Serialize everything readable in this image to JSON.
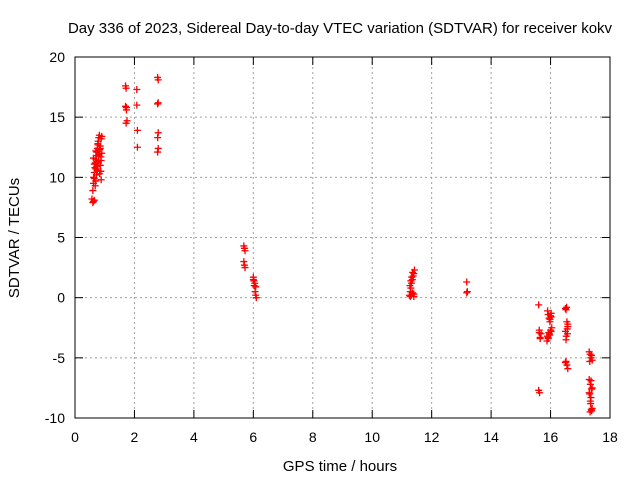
{
  "chart_data": {
    "type": "scatter",
    "title": "Day 336 of 2023, Sidereal Day-to-day VTEC variation (SDTVAR) for receiver kokv",
    "xlabel": "GPS time / hours",
    "ylabel": "SDTVAR / TECUs",
    "xlim": [
      0,
      18
    ],
    "ylim": [
      -10,
      20
    ],
    "xticks": [
      "0",
      "2",
      "4",
      "6",
      "8",
      "10",
      "12",
      "14",
      "16",
      "18"
    ],
    "yticks": [
      "-10",
      "-5",
      "0",
      "5",
      "10",
      "15",
      "20"
    ],
    "grid": true,
    "marker": "+",
    "color": "#ff0000",
    "series": [
      {
        "name": "SDTVAR",
        "x": [
          0.57,
          0.6,
          0.62,
          0.63,
          0.65,
          0.67,
          0.68,
          0.7,
          0.72,
          0.73,
          0.75,
          0.77,
          0.78,
          0.8,
          0.82,
          0.83,
          0.85,
          0.87,
          0.88,
          0.6,
          0.62,
          0.65,
          0.68,
          0.7,
          0.72,
          0.75,
          0.78,
          0.8,
          0.83,
          0.85,
          0.88,
          0.62,
          0.65,
          0.7,
          0.73,
          0.77,
          0.8,
          0.83,
          0.87,
          0.65,
          0.7,
          0.75,
          0.8,
          0.85,
          0.9,
          0.88,
          0.9,
          1.7,
          1.72,
          1.73,
          1.75,
          1.7,
          1.72,
          1.73,
          2.08,
          2.08,
          2.1,
          2.1,
          2.78,
          2.8,
          2.78,
          2.8,
          2.78,
          2.8,
          2.78,
          2.8,
          5.68,
          5.7,
          5.72,
          5.68,
          5.7,
          5.72,
          6.0,
          6.02,
          6.05,
          6.08,
          6.0,
          6.03,
          6.06,
          6.08,
          6.1,
          11.25,
          11.28,
          11.3,
          11.32,
          11.35,
          11.38,
          11.4,
          11.42,
          11.27,
          11.3,
          11.33,
          11.36,
          11.4,
          11.28,
          11.32,
          11.36,
          11.4,
          13.18,
          13.2,
          13.18,
          15.6,
          15.62,
          15.65,
          15.6,
          15.63,
          15.68,
          15.62,
          15.65,
          15.9,
          15.92,
          15.95,
          15.98,
          16.0,
          16.02,
          15.88,
          15.92,
          15.96,
          16.0,
          16.04,
          15.9,
          15.94,
          15.98,
          16.02,
          15.92,
          15.97,
          16.02,
          16.5,
          16.52,
          16.55,
          16.58,
          16.5,
          16.53,
          16.57,
          16.52,
          16.55,
          16.58,
          16.5,
          16.54,
          16.58,
          16.52,
          16.56,
          17.3,
          17.33,
          17.36,
          17.4,
          17.3,
          17.34,
          17.38,
          17.32,
          17.36,
          17.4,
          17.33,
          17.37,
          17.3,
          17.34,
          17.38,
          17.32,
          17.36,
          17.4,
          17.35,
          17.38
        ],
        "y": [
          8.2,
          8.9,
          9.5,
          10.0,
          10.4,
          10.8,
          11.2,
          11.5,
          11.8,
          12.1,
          12.4,
          12.7,
          13.0,
          13.3,
          13.5,
          12.0,
          11.0,
          10.5,
          9.8,
          7.9,
          8.0,
          8.1,
          9.3,
          9.7,
          10.2,
          10.6,
          11.3,
          11.9,
          12.3,
          12.6,
          13.2,
          11.6,
          11.1,
          12.2,
          10.9,
          12.8,
          11.4,
          10.3,
          11.7,
          9.9,
          10.7,
          11.0,
          11.8,
          12.4,
          12.0,
          11.4,
          13.4,
          17.6,
          17.4,
          15.8,
          14.7,
          15.9,
          14.5,
          15.6,
          17.3,
          16.0,
          13.9,
          12.5,
          18.3,
          18.1,
          16.1,
          13.7,
          13.3,
          12.4,
          12.1,
          16.2,
          4.3,
          4.1,
          3.9,
          3.0,
          2.7,
          2.5,
          1.7,
          1.4,
          1.2,
          0.9,
          1.5,
          1.0,
          0.5,
          0.2,
          0.0,
          0.2,
          0.5,
          0.8,
          1.2,
          1.5,
          1.8,
          2.0,
          2.3,
          1.0,
          1.4,
          1.7,
          2.1,
          0.3,
          0.1,
          0.2,
          0.4,
          0.1,
          1.3,
          0.5,
          0.4,
          -0.6,
          -2.7,
          -3.3,
          -7.7,
          -7.9,
          -3.0,
          -2.9,
          -3.4,
          -1.1,
          -1.4,
          -1.7,
          -2.0,
          -1.5,
          -1.3,
          -3.6,
          -3.3,
          -3.0,
          -2.7,
          -2.5,
          -3.2,
          -2.9,
          -1.8,
          -1.6,
          -3.4,
          -3.1,
          -2.8,
          -0.9,
          -1.0,
          -2.0,
          -2.4,
          -2.8,
          -3.2,
          -3.0,
          -5.3,
          -5.6,
          -5.9,
          -5.4,
          -0.8,
          -2.2,
          -3.5,
          -2.6,
          -4.5,
          -4.7,
          -5.0,
          -5.2,
          -6.8,
          -7.2,
          -7.6,
          -8.0,
          -8.3,
          -9.2,
          -9.5,
          -9.3,
          -7.9,
          -8.6,
          -4.8,
          -5.3,
          -6.9,
          -7.5,
          -8.8,
          -9.4
        ]
      }
    ]
  }
}
